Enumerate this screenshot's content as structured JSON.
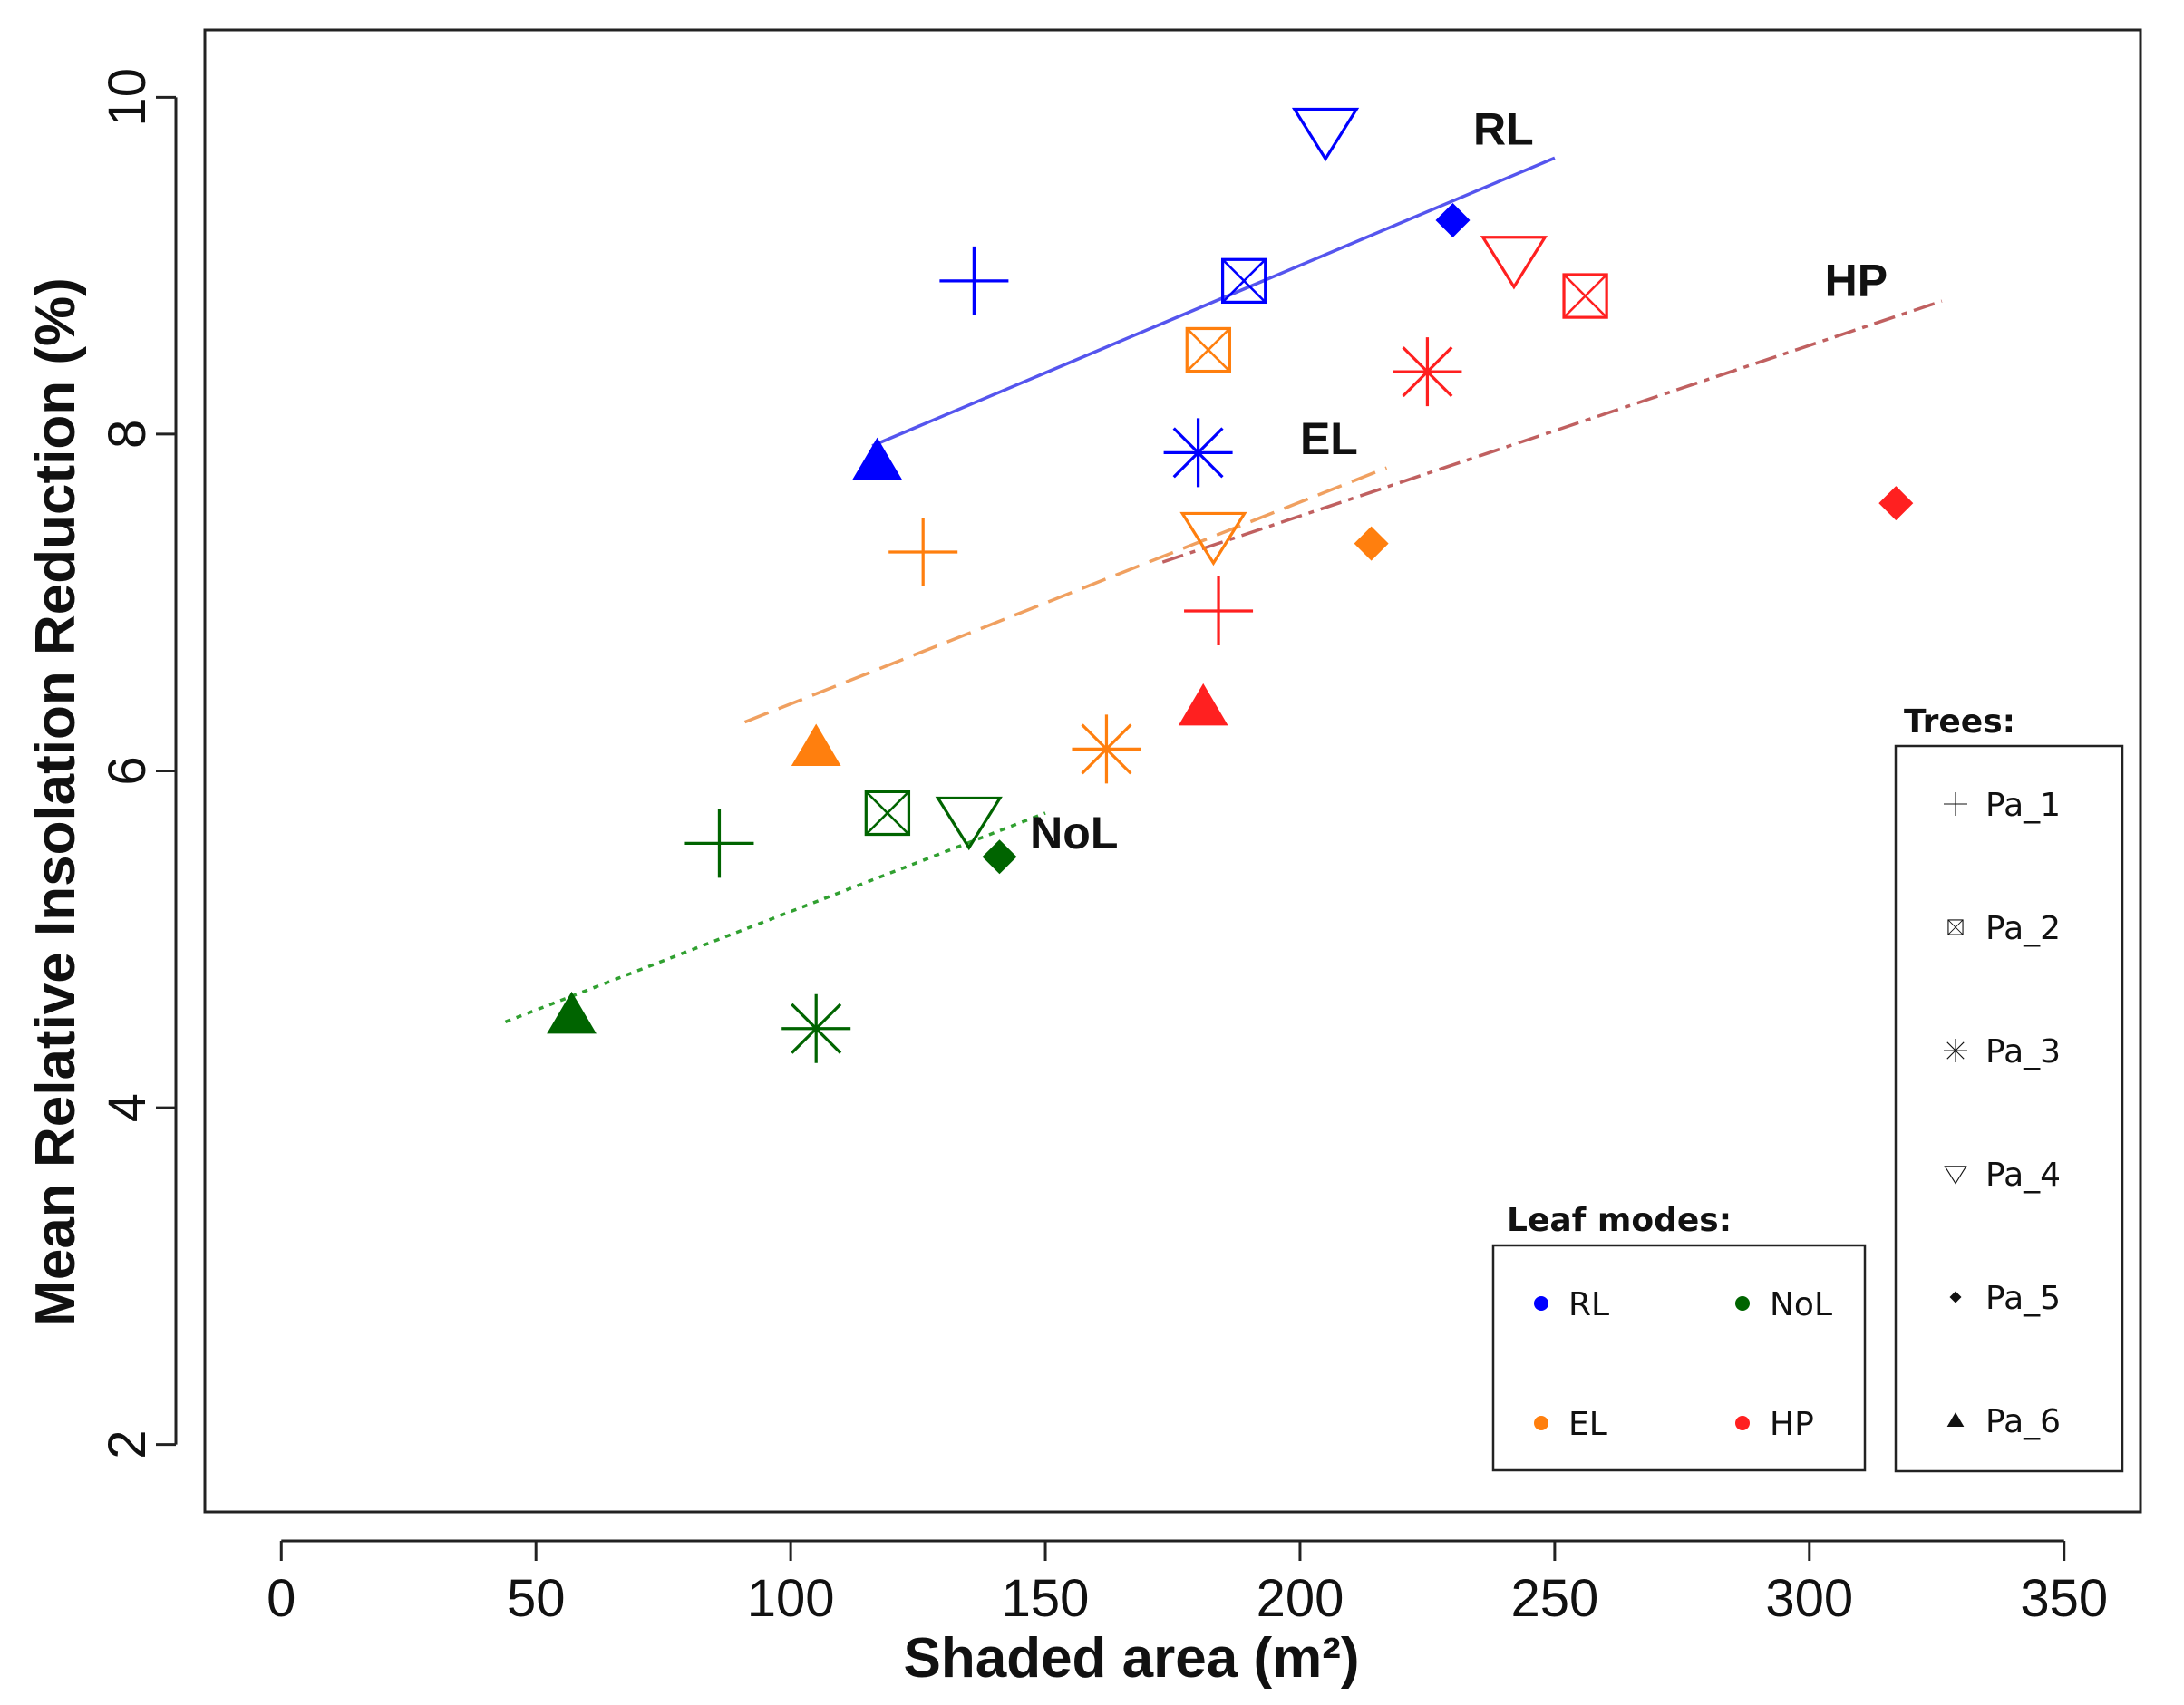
{
  "chart_data": {
    "type": "scatter",
    "xlabel": "Shaded area (m²)",
    "ylabel": "Mean Relative Insolation  Reduction (%)",
    "xlim": [
      -15,
      365
    ],
    "ylim": [
      1.6,
      10.4
    ],
    "xticks": [
      0,
      50,
      100,
      150,
      200,
      250,
      300,
      350
    ],
    "yticks": [
      2,
      4,
      6,
      8,
      10
    ],
    "colors": {
      "RL": "#0000ff",
      "EL": "#ff7f0e",
      "NoL": "#006400",
      "HP": "#ff2020"
    },
    "series": [
      {
        "name": "RL",
        "points": [
          {
            "tree": "Pa_1",
            "x": 136,
            "y": 8.91
          },
          {
            "tree": "Pa_2",
            "x": 189,
            "y": 8.91
          },
          {
            "tree": "Pa_3",
            "x": 180,
            "y": 7.89
          },
          {
            "tree": "Pa_4",
            "x": 205,
            "y": 9.8
          },
          {
            "tree": "Pa_5",
            "x": 230,
            "y": 9.27
          },
          {
            "tree": "Pa_6",
            "x": 117,
            "y": 7.84
          }
        ],
        "fit": {
          "x": [
            116,
            250
          ],
          "y": [
            7.93,
            9.64
          ],
          "style": "solid",
          "color": "#5555ee"
        }
      },
      {
        "name": "EL",
        "points": [
          {
            "tree": "Pa_1",
            "x": 126,
            "y": 7.3
          },
          {
            "tree": "Pa_2",
            "x": 182,
            "y": 8.5
          },
          {
            "tree": "Pa_3",
            "x": 162,
            "y": 6.13
          },
          {
            "tree": "Pa_4",
            "x": 183,
            "y": 7.4
          },
          {
            "tree": "Pa_5",
            "x": 214,
            "y": 7.35
          },
          {
            "tree": "Pa_6",
            "x": 105,
            "y": 6.14
          }
        ],
        "fit": {
          "x": [
            91,
            217
          ],
          "y": [
            6.29,
            7.8
          ],
          "style": "dashed",
          "color": "#f0a060"
        }
      },
      {
        "name": "NoL",
        "points": [
          {
            "tree": "Pa_1",
            "x": 86,
            "y": 5.57
          },
          {
            "tree": "Pa_2",
            "x": 119,
            "y": 5.75
          },
          {
            "tree": "Pa_3",
            "x": 105,
            "y": 4.47
          },
          {
            "tree": "Pa_4",
            "x": 135,
            "y": 5.71
          },
          {
            "tree": "Pa_5",
            "x": 141,
            "y": 5.49
          },
          {
            "tree": "Pa_6",
            "x": 57,
            "y": 4.55
          }
        ],
        "fit": {
          "x": [
            44,
            150
          ],
          "y": [
            4.51,
            5.75
          ],
          "style": "dotted",
          "color": "#30a030"
        }
      },
      {
        "name": "HP",
        "points": [
          {
            "tree": "Pa_1",
            "x": 184,
            "y": 6.95
          },
          {
            "tree": "Pa_2",
            "x": 256,
            "y": 8.82
          },
          {
            "tree": "Pa_3",
            "x": 225,
            "y": 8.37
          },
          {
            "tree": "Pa_4",
            "x": 242,
            "y": 9.04
          },
          {
            "tree": "Pa_5",
            "x": 317,
            "y": 7.59
          },
          {
            "tree": "Pa_6",
            "x": 181,
            "y": 6.38
          }
        ],
        "fit": {
          "x": [
            173,
            326
          ],
          "y": [
            7.24,
            8.79
          ],
          "style": "dashdot",
          "color": "#c06060"
        }
      }
    ],
    "annotations": [
      {
        "text": "RL",
        "x": 234,
        "y": 9.72
      },
      {
        "text": "HP",
        "x": 303,
        "y": 8.82
      },
      {
        "text": "EL",
        "x": 200,
        "y": 7.88
      },
      {
        "text": "NoL",
        "x": 147,
        "y": 5.54
      }
    ],
    "legend_leaf_modes": {
      "title": "Leaf modes:",
      "placement": "bottom-right",
      "items": [
        "RL",
        "NoL",
        "EL",
        "HP"
      ]
    },
    "legend_trees": {
      "title": "Trees:",
      "placement": "right",
      "items": [
        "Pa_1",
        "Pa_2",
        "Pa_3",
        "Pa_4",
        "Pa_5",
        "Pa_6"
      ]
    }
  }
}
